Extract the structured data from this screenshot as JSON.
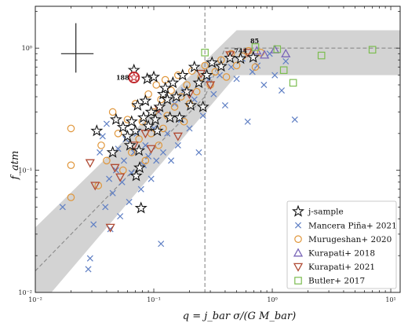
{
  "chart_data": {
    "type": "scatter",
    "xlabel": "q = j_bar σ/(G M_bar)",
    "ylabel": "f_atm",
    "x_log": true,
    "y_log": true,
    "xlim": [
      0.01,
      12
    ],
    "ylim": [
      0.01,
      2.2
    ],
    "x_ticks": [
      {
        "value": 0.01,
        "label": "10⁻²"
      },
      {
        "value": 0.1,
        "label": "10⁻¹"
      },
      {
        "value": 1,
        "label": "10⁰"
      },
      {
        "value": 10,
        "label": "10¹"
      }
    ],
    "y_ticks": [
      {
        "value": 0.01,
        "label": "10⁻²"
      },
      {
        "value": 0.1,
        "label": "10⁻¹"
      },
      {
        "value": 1,
        "label": "10⁰"
      }
    ],
    "vline_q": 0.27,
    "model_line": {
      "x": [
        0.01,
        0.27,
        0.4,
        12
      ],
      "y": [
        0.015,
        0.4,
        1.0,
        1.0
      ]
    },
    "band": {
      "x": [
        0.01,
        0.5,
        12
      ],
      "lower": [
        0.007,
        0.6,
        0.6
      ],
      "upper": [
        0.034,
        1.4,
        1.4
      ]
    },
    "error_bar": {
      "x": 0.022,
      "y": 0.9,
      "x_lo": 0.0165,
      "x_hi": 0.031,
      "y_lo": 0.63,
      "y_hi": 1.6
    },
    "annotations": [
      {
        "text": "188",
        "x": 0.062,
        "y": 0.575
      },
      {
        "text": "744",
        "x": 0.54,
        "y": 0.95
      },
      {
        "text": "85",
        "x": 0.71,
        "y": 1.15
      }
    ],
    "legend_position": "lower-right",
    "series": [
      {
        "name": "j-sample",
        "marker": "star",
        "color": "#111111",
        "points": [
          {
            "x": 0.033,
            "y": 0.21
          },
          {
            "x": 0.045,
            "y": 0.14
          },
          {
            "x": 0.048,
            "y": 0.26
          },
          {
            "x": 0.055,
            "y": 0.225
          },
          {
            "x": 0.06,
            "y": 0.19
          },
          {
            "x": 0.063,
            "y": 0.16
          },
          {
            "x": 0.065,
            "y": 0.25
          },
          {
            "x": 0.068,
            "y": 0.66
          },
          {
            "x": 0.07,
            "y": 0.21
          },
          {
            "x": 0.071,
            "y": 0.09
          },
          {
            "x": 0.073,
            "y": 0.34
          },
          {
            "x": 0.075,
            "y": 0.145
          },
          {
            "x": 0.076,
            "y": 0.105
          },
          {
            "x": 0.078,
            "y": 0.049
          },
          {
            "x": 0.082,
            "y": 0.27
          },
          {
            "x": 0.085,
            "y": 0.37
          },
          {
            "x": 0.088,
            "y": 0.56
          },
          {
            "x": 0.09,
            "y": 0.23
          },
          {
            "x": 0.095,
            "y": 0.3
          },
          {
            "x": 0.1,
            "y": 0.58
          },
          {
            "x": 0.103,
            "y": 0.26
          },
          {
            "x": 0.107,
            "y": 0.21
          },
          {
            "x": 0.112,
            "y": 0.33
          },
          {
            "x": 0.12,
            "y": 0.42
          },
          {
            "x": 0.125,
            "y": 0.47
          },
          {
            "x": 0.13,
            "y": 0.38
          },
          {
            "x": 0.137,
            "y": 0.27
          },
          {
            "x": 0.145,
            "y": 0.52
          },
          {
            "x": 0.155,
            "y": 0.4
          },
          {
            "x": 0.165,
            "y": 0.27
          },
          {
            "x": 0.175,
            "y": 0.6
          },
          {
            "x": 0.19,
            "y": 0.44
          },
          {
            "x": 0.205,
            "y": 0.34
          },
          {
            "x": 0.22,
            "y": 0.7
          },
          {
            "x": 0.24,
            "y": 0.52
          },
          {
            "x": 0.26,
            "y": 0.33
          },
          {
            "x": 0.28,
            "y": 0.6
          },
          {
            "x": 0.31,
            "y": 0.76
          },
          {
            "x": 0.37,
            "y": 0.71
          },
          {
            "x": 0.44,
            "y": 0.83
          },
          {
            "x": 0.54,
            "y": 0.82
          },
          {
            "x": 0.69,
            "y": 0.84
          }
        ]
      },
      {
        "name": "Mancera Piña+ 2021",
        "marker": "x",
        "color": "#5f7fc4",
        "points": [
          {
            "x": 0.017,
            "y": 0.05
          },
          {
            "x": 0.028,
            "y": 0.0155
          },
          {
            "x": 0.029,
            "y": 0.019
          },
          {
            "x": 0.031,
            "y": 0.036
          },
          {
            "x": 0.035,
            "y": 0.14
          },
          {
            "x": 0.037,
            "y": 0.19
          },
          {
            "x": 0.039,
            "y": 0.05
          },
          {
            "x": 0.04,
            "y": 0.24
          },
          {
            "x": 0.042,
            "y": 0.085
          },
          {
            "x": 0.043,
            "y": 0.033
          },
          {
            "x": 0.045,
            "y": 0.065
          },
          {
            "x": 0.048,
            "y": 0.1
          },
          {
            "x": 0.05,
            "y": 0.15
          },
          {
            "x": 0.052,
            "y": 0.042
          },
          {
            "x": 0.054,
            "y": 0.08
          },
          {
            "x": 0.056,
            "y": 0.12
          },
          {
            "x": 0.058,
            "y": 0.18
          },
          {
            "x": 0.062,
            "y": 0.055
          },
          {
            "x": 0.065,
            "y": 0.095
          },
          {
            "x": 0.068,
            "y": 0.14
          },
          {
            "x": 0.072,
            "y": 0.2
          },
          {
            "x": 0.078,
            "y": 0.07
          },
          {
            "x": 0.082,
            "y": 0.11
          },
          {
            "x": 0.085,
            "y": 0.16
          },
          {
            "x": 0.09,
            "y": 0.13
          },
          {
            "x": 0.095,
            "y": 0.085
          },
          {
            "x": 0.1,
            "y": 0.22
          },
          {
            "x": 0.105,
            "y": 0.12
          },
          {
            "x": 0.11,
            "y": 0.3
          },
          {
            "x": 0.115,
            "y": 0.025
          },
          {
            "x": 0.12,
            "y": 0.14
          },
          {
            "x": 0.13,
            "y": 0.2
          },
          {
            "x": 0.14,
            "y": 0.12
          },
          {
            "x": 0.15,
            "y": 0.35
          },
          {
            "x": 0.16,
            "y": 0.16
          },
          {
            "x": 0.17,
            "y": 0.26
          },
          {
            "x": 0.18,
            "y": 0.45
          },
          {
            "x": 0.2,
            "y": 0.22
          },
          {
            "x": 0.22,
            "y": 0.38
          },
          {
            "x": 0.24,
            "y": 0.14
          },
          {
            "x": 0.26,
            "y": 0.28
          },
          {
            "x": 0.29,
            "y": 0.55
          },
          {
            "x": 0.32,
            "y": 0.42
          },
          {
            "x": 0.36,
            "y": 0.6
          },
          {
            "x": 0.4,
            "y": 0.34
          },
          {
            "x": 0.45,
            "y": 0.7
          },
          {
            "x": 0.5,
            "y": 0.56
          },
          {
            "x": 0.56,
            "y": 0.82
          },
          {
            "x": 0.62,
            "y": 0.25
          },
          {
            "x": 0.68,
            "y": 0.64
          },
          {
            "x": 0.75,
            "y": 0.72
          },
          {
            "x": 0.85,
            "y": 0.5
          },
          {
            "x": 0.95,
            "y": 0.9
          },
          {
            "x": 1.05,
            "y": 0.6
          },
          {
            "x": 1.2,
            "y": 0.45
          },
          {
            "x": 1.3,
            "y": 0.78
          },
          {
            "x": 1.55,
            "y": 0.26
          }
        ]
      },
      {
        "name": "Murugeshan+ 2020",
        "marker": "circle",
        "color": "#e0963a",
        "points": [
          {
            "x": 0.02,
            "y": 0.22
          },
          {
            "x": 0.02,
            "y": 0.11
          },
          {
            "x": 0.02,
            "y": 0.06
          },
          {
            "x": 0.034,
            "y": 0.075
          },
          {
            "x": 0.036,
            "y": 0.16
          },
          {
            "x": 0.04,
            "y": 0.12
          },
          {
            "x": 0.045,
            "y": 0.3
          },
          {
            "x": 0.05,
            "y": 0.2
          },
          {
            "x": 0.055,
            "y": 0.1
          },
          {
            "x": 0.06,
            "y": 0.26
          },
          {
            "x": 0.065,
            "y": 0.14
          },
          {
            "x": 0.07,
            "y": 0.35
          },
          {
            "x": 0.075,
            "y": 0.18
          },
          {
            "x": 0.08,
            "y": 0.25
          },
          {
            "x": 0.085,
            "y": 0.12
          },
          {
            "x": 0.09,
            "y": 0.42
          },
          {
            "x": 0.095,
            "y": 0.2
          },
          {
            "x": 0.1,
            "y": 0.3
          },
          {
            "x": 0.105,
            "y": 0.5
          },
          {
            "x": 0.11,
            "y": 0.16
          },
          {
            "x": 0.115,
            "y": 0.38
          },
          {
            "x": 0.12,
            "y": 0.22
          },
          {
            "x": 0.125,
            "y": 0.55
          },
          {
            "x": 0.13,
            "y": 0.28
          },
          {
            "x": 0.14,
            "y": 0.45
          },
          {
            "x": 0.15,
            "y": 0.33
          },
          {
            "x": 0.16,
            "y": 0.6
          },
          {
            "x": 0.17,
            "y": 0.4
          },
          {
            "x": 0.18,
            "y": 0.25
          },
          {
            "x": 0.19,
            "y": 0.5
          },
          {
            "x": 0.2,
            "y": 0.35
          },
          {
            "x": 0.21,
            "y": 0.65
          },
          {
            "x": 0.23,
            "y": 0.44
          },
          {
            "x": 0.25,
            "y": 0.58
          },
          {
            "x": 0.27,
            "y": 0.72
          },
          {
            "x": 0.3,
            "y": 0.5
          },
          {
            "x": 0.33,
            "y": 0.64
          },
          {
            "x": 0.37,
            "y": 0.8
          },
          {
            "x": 0.41,
            "y": 0.58
          },
          {
            "x": 0.45,
            "y": 0.9
          },
          {
            "x": 0.5,
            "y": 0.72
          },
          {
            "x": 0.56,
            "y": 0.86
          },
          {
            "x": 0.63,
            "y": 0.95
          },
          {
            "x": 0.72,
            "y": 0.7
          },
          {
            "x": 0.8,
            "y": 0.92
          }
        ]
      },
      {
        "name": "Kurapati+ 2018",
        "marker": "triangle-up",
        "color": "#7a66b8",
        "points": [
          {
            "x": 0.74,
            "y": 0.95
          },
          {
            "x": 0.86,
            "y": 0.88
          },
          {
            "x": 1.05,
            "y": 0.97
          },
          {
            "x": 1.3,
            "y": 0.9
          }
        ]
      },
      {
        "name": "Kurapati+ 2021",
        "marker": "triangle-down",
        "color": "#b04a33",
        "points": [
          {
            "x": 0.029,
            "y": 0.115
          },
          {
            "x": 0.032,
            "y": 0.075
          },
          {
            "x": 0.043,
            "y": 0.034
          },
          {
            "x": 0.047,
            "y": 0.105
          },
          {
            "x": 0.052,
            "y": 0.088
          },
          {
            "x": 0.068,
            "y": 0.16
          },
          {
            "x": 0.085,
            "y": 0.2
          },
          {
            "x": 0.095,
            "y": 0.15
          },
          {
            "x": 0.11,
            "y": 0.32
          },
          {
            "x": 0.16,
            "y": 0.19
          },
          {
            "x": 0.2,
            "y": 0.42
          },
          {
            "x": 0.25,
            "y": 0.62
          },
          {
            "x": 0.3,
            "y": 0.5
          },
          {
            "x": 0.44,
            "y": 0.88
          },
          {
            "x": 0.62,
            "y": 0.92
          }
        ]
      },
      {
        "name": "Butler+ 2017",
        "marker": "square",
        "color": "#7cbd50",
        "points": [
          {
            "x": 0.27,
            "y": 0.92
          },
          {
            "x": 0.72,
            "y": 1.02
          },
          {
            "x": 1.1,
            "y": 0.98
          },
          {
            "x": 1.25,
            "y": 0.66
          },
          {
            "x": 1.5,
            "y": 0.52
          },
          {
            "x": 2.6,
            "y": 0.87
          },
          {
            "x": 7.0,
            "y": 0.97
          }
        ]
      }
    ],
    "highlight": {
      "x": 0.068,
      "y": 0.575,
      "marker": "star-in-circle",
      "color": "#c0282d"
    }
  }
}
